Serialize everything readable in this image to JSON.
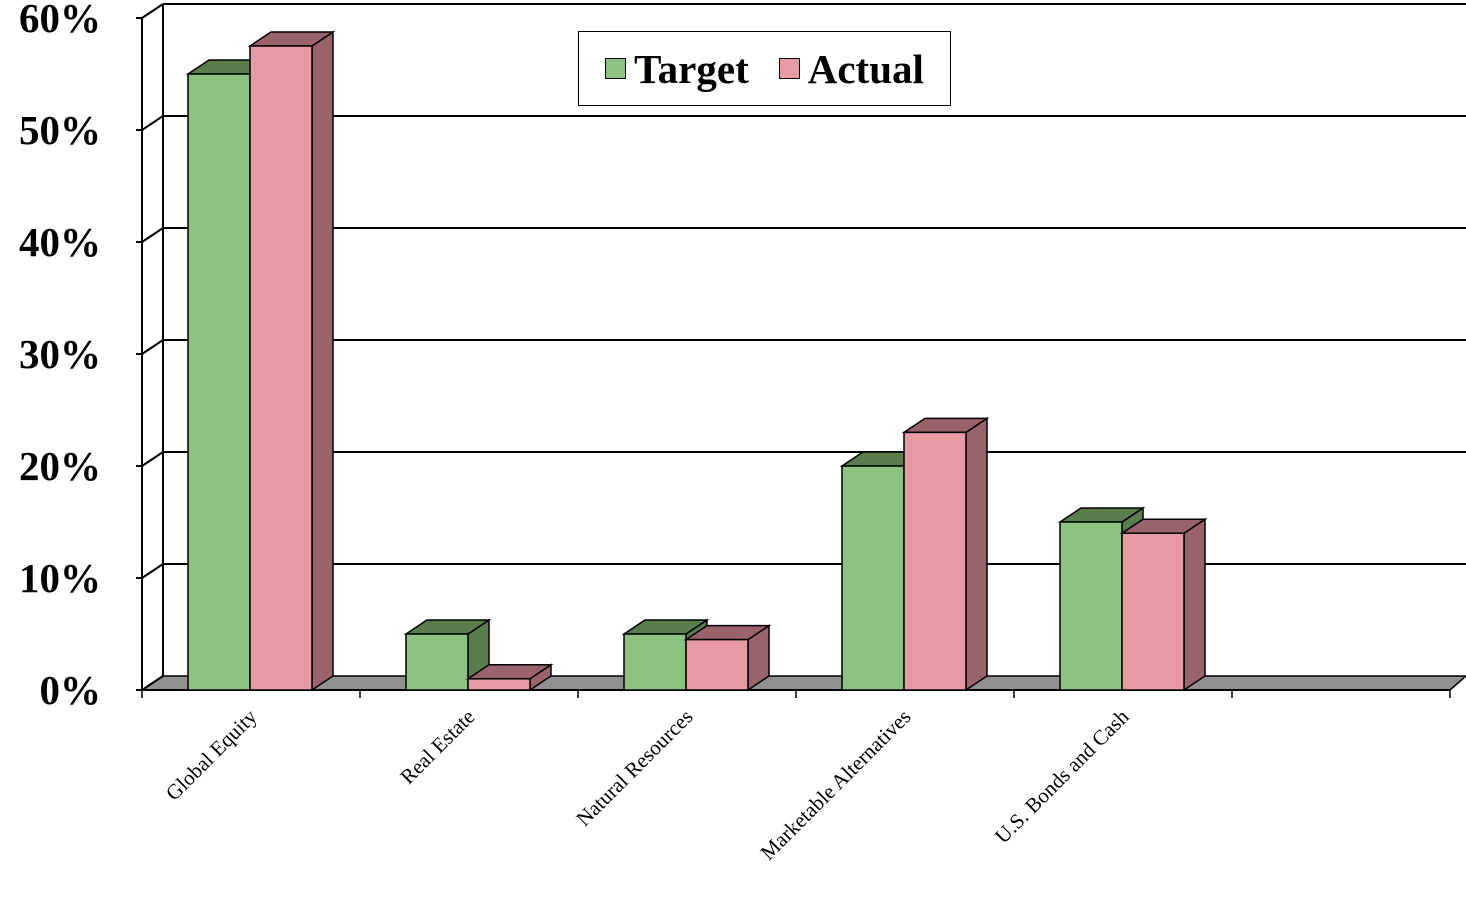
{
  "chart_data": {
    "type": "bar",
    "title": "",
    "xlabel": "",
    "ylabel": "",
    "ylim": [
      0,
      0.6
    ],
    "yticks": [
      "0%",
      "10%",
      "20%",
      "30%",
      "40%",
      "50%",
      "60%"
    ],
    "grid": true,
    "legend_position": "top-center",
    "categories": [
      "Global Equity",
      "Real Estate",
      "Natural Resources",
      "Marketable Alternatives",
      "U.S. Bonds and Cash"
    ],
    "series": [
      {
        "name": "Target",
        "values": [
          0.55,
          0.05,
          0.05,
          0.2,
          0.15
        ],
        "color": "#8dc283",
        "side_color": "#5a7d4e"
      },
      {
        "name": "Actual",
        "values": [
          0.575,
          0.01,
          0.045,
          0.23,
          0.14
        ],
        "color": "#e79ca5",
        "side_color": "#9a636b"
      }
    ],
    "floor_color": "#909090"
  }
}
